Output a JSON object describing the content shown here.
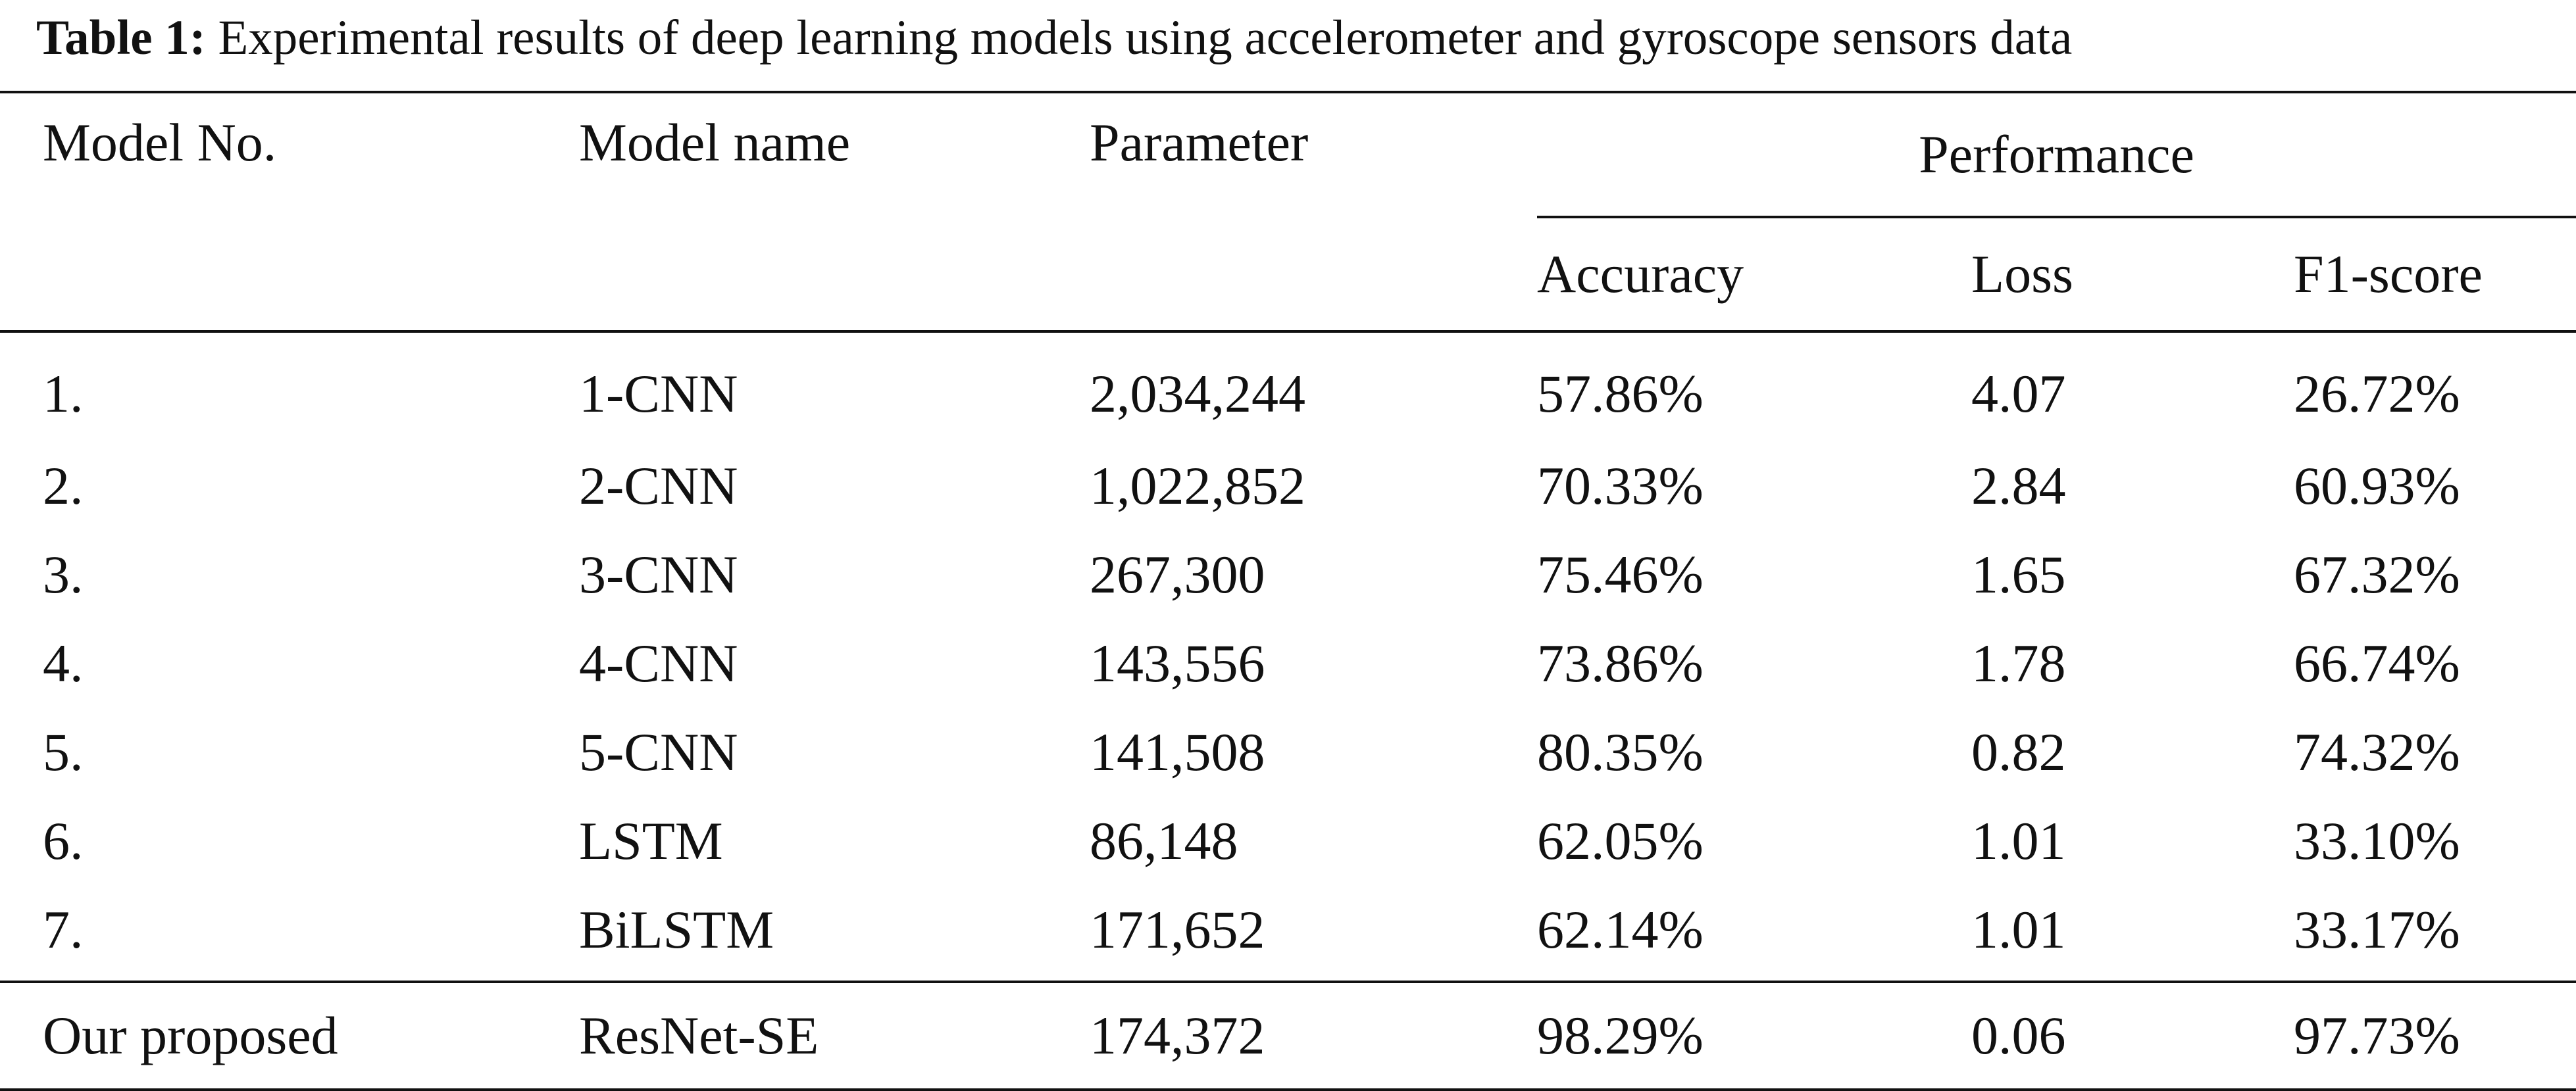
{
  "caption": {
    "label": "Table 1:",
    "text": "Experimental results of deep learning models using accelerometer and gyroscope sensors data"
  },
  "table": {
    "headers": {
      "model_no": "Model No.",
      "model_name": "Model name",
      "parameter": "Parameter",
      "performance": "Performance",
      "accuracy": "Accuracy",
      "loss": "Loss",
      "f1": "F1-score"
    },
    "rows": [
      {
        "no": "1.",
        "name": "1-CNN",
        "parameter": "2,034,244",
        "accuracy": "57.86%",
        "loss": "4.07",
        "f1": "26.72%"
      },
      {
        "no": "2.",
        "name": "2-CNN",
        "parameter": "1,022,852",
        "accuracy": "70.33%",
        "loss": "2.84",
        "f1": "60.93%"
      },
      {
        "no": "3.",
        "name": "3-CNN",
        "parameter": "267,300",
        "accuracy": "75.46%",
        "loss": "1.65",
        "f1": "67.32%"
      },
      {
        "no": "4.",
        "name": "4-CNN",
        "parameter": "143,556",
        "accuracy": "73.86%",
        "loss": "1.78",
        "f1": "66.74%"
      },
      {
        "no": "5.",
        "name": "5-CNN",
        "parameter": "141,508",
        "accuracy": "80.35%",
        "loss": "0.82",
        "f1": "74.32%"
      },
      {
        "no": "6.",
        "name": "LSTM",
        "parameter": "86,148",
        "accuracy": "62.05%",
        "loss": "1.01",
        "f1": "33.10%"
      },
      {
        "no": "7.",
        "name": "BiLSTM",
        "parameter": "171,652",
        "accuracy": "62.14%",
        "loss": "1.01",
        "f1": "33.17%"
      }
    ],
    "proposed": {
      "no": "Our proposed",
      "name": "ResNet-SE",
      "parameter": "174,372",
      "accuracy": "98.29%",
      "loss": "0.06",
      "f1": "97.73%"
    }
  }
}
